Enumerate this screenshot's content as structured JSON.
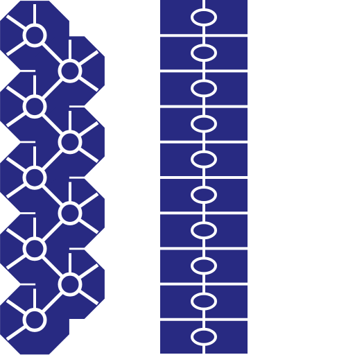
{
  "colors": {
    "background": "#ffffff",
    "tile_fill": "#282a82",
    "grout": "#ffffff"
  },
  "patterns": {
    "zigzag_chain": {
      "node_count": 9
    },
    "ladder_strip": {
      "row_count": 10,
      "node_count": 10
    }
  }
}
